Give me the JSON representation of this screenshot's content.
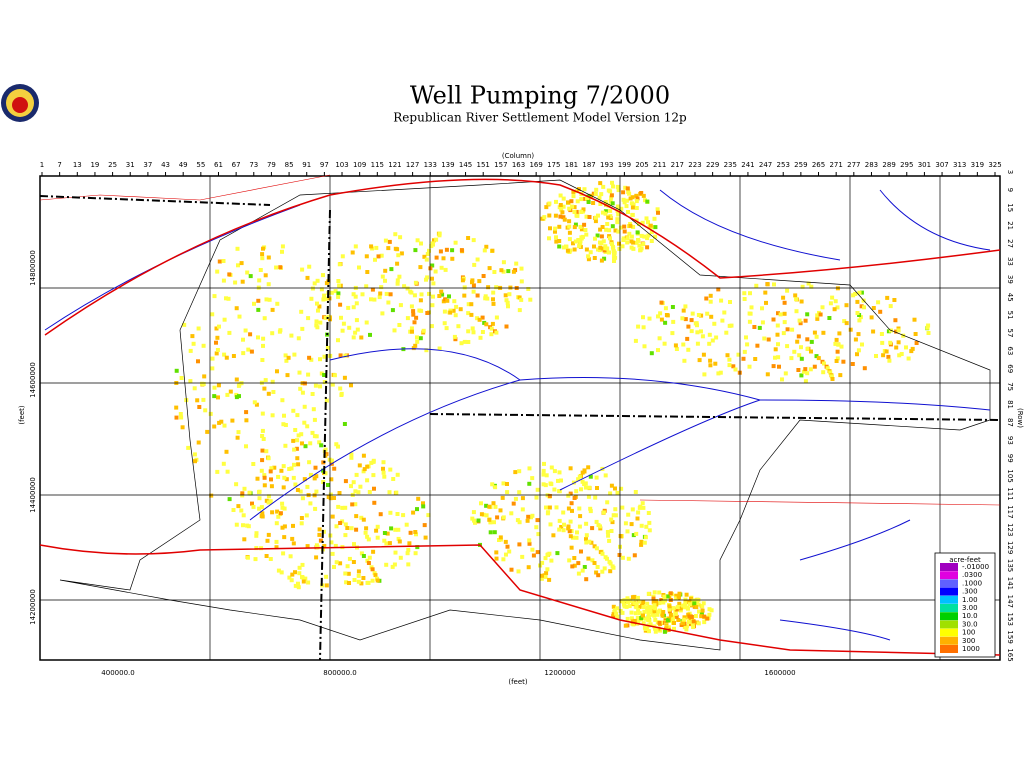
{
  "header": {
    "title": "Well Pumping  7/2000",
    "subtitle": "Republican River Settlement Model Version 12p"
  },
  "axes": {
    "column_title": "(Column)",
    "row_title": "(Row)",
    "x_title": "(feet)",
    "y_title": "(feet)",
    "columns": [
      1,
      7,
      13,
      19,
      25,
      31,
      37,
      43,
      49,
      55,
      61,
      67,
      73,
      79,
      85,
      91,
      97,
      103,
      109,
      115,
      121,
      127,
      133,
      139,
      145,
      151,
      157,
      163,
      169,
      175,
      181,
      187,
      193,
      199,
      205,
      211,
      217,
      223,
      229,
      235,
      241,
      247,
      253,
      259,
      265,
      271,
      277,
      283,
      289,
      295,
      301,
      307,
      313,
      319,
      325
    ],
    "rows": [
      3,
      9,
      15,
      21,
      27,
      33,
      39,
      45,
      51,
      57,
      63,
      69,
      75,
      81,
      87,
      93,
      99,
      105,
      111,
      117,
      123,
      129,
      135,
      141,
      147,
      153,
      159,
      165
    ],
    "x_labels": [
      "400000.0",
      "800000.0",
      "1200000",
      "1600000"
    ],
    "y_labels": [
      "14800000",
      "14600000",
      "14400000",
      "14200000"
    ]
  },
  "legend": {
    "title": "acre-feet",
    "entries": [
      "-.01000",
      ".0300",
      ".1000",
      ".300",
      "1.00",
      "3.00",
      "10.0",
      "30.0",
      "100",
      "300",
      "1000"
    ]
  }
}
